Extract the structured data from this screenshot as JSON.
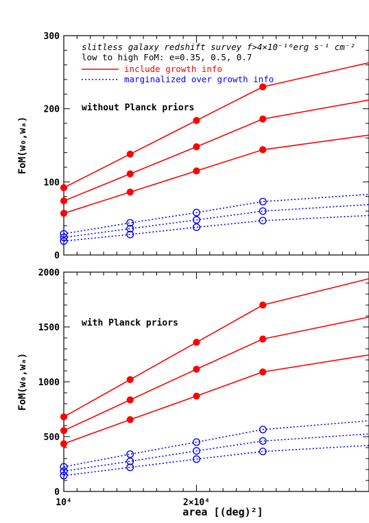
{
  "chart_data": [
    {
      "type": "line",
      "panel": "top",
      "note": "without Planck priors",
      "title_lines": [
        "slitless galaxy redshift survey f>4×10⁻¹⁶erg s⁻¹ cm⁻²",
        "low to high FoM: e=0.35, 0.5, 0.7"
      ],
      "legend": [
        {
          "label": "include growth info",
          "color": "#ff0000",
          "style": "solid"
        },
        {
          "label": "marginalized over growth info",
          "color": "#0000ff",
          "style": "dotted"
        }
      ],
      "ylabel": "FoM(w₀,wₐ)",
      "ylim": [
        0,
        300
      ],
      "yticks": [
        0,
        100,
        200,
        300
      ],
      "xlim": [
        10000,
        33000
      ],
      "x": [
        10000,
        15000,
        20000,
        25000
      ],
      "series": [
        {
          "group": "include growth info",
          "marker": "filled",
          "values": [
            92,
            138,
            184,
            230
          ],
          "end": 263
        },
        {
          "group": "include growth info",
          "marker": "filled",
          "values": [
            74,
            111,
            148,
            186
          ],
          "end": 212
        },
        {
          "group": "include growth info",
          "marker": "filled",
          "values": [
            57,
            86,
            115,
            144
          ],
          "end": 164
        },
        {
          "group": "marginalized over growth info",
          "marker": "open",
          "values": [
            29,
            44,
            58,
            73
          ],
          "end": 83
        },
        {
          "group": "marginalized over growth info",
          "marker": "open",
          "values": [
            24,
            36,
            48,
            60
          ],
          "end": 69
        },
        {
          "group": "marginalized over growth info",
          "marker": "open",
          "values": [
            19,
            28,
            38,
            47
          ],
          "end": 54
        }
      ]
    },
    {
      "type": "line",
      "panel": "bottom",
      "note": "with Planck priors",
      "ylabel": "FoM(w₀,wₐ)",
      "xlabel": "area [(deg)²]",
      "ylim": [
        0,
        2000
      ],
      "yticks": [
        0,
        500,
        1000,
        1500,
        2000
      ],
      "xlim": [
        10000,
        33000
      ],
      "xticklabels": [
        "10⁴",
        "2×10⁴"
      ],
      "x": [
        10000,
        15000,
        20000,
        25000
      ],
      "series": [
        {
          "group": "include growth info",
          "marker": "filled",
          "values": [
            680,
            1020,
            1360,
            1700
          ],
          "end": 1940
        },
        {
          "group": "include growth info",
          "marker": "filled",
          "values": [
            555,
            835,
            1115,
            1390
          ],
          "end": 1590
        },
        {
          "group": "include growth info",
          "marker": "filled",
          "values": [
            435,
            655,
            870,
            1090
          ],
          "end": 1245
        },
        {
          "group": "marginalized over growth info",
          "marker": "open",
          "values": [
            225,
            340,
            450,
            565
          ],
          "end": 645
        },
        {
          "group": "marginalized over growth info",
          "marker": "open",
          "values": [
            185,
            275,
            370,
            460
          ],
          "end": 525
        },
        {
          "group": "marginalized over growth info",
          "marker": "open",
          "values": [
            145,
            220,
            295,
            365
          ],
          "end": 420
        }
      ]
    }
  ],
  "colors": {
    "include": "#ff0000",
    "marginalized": "#0000ff",
    "axes": "#000000"
  }
}
